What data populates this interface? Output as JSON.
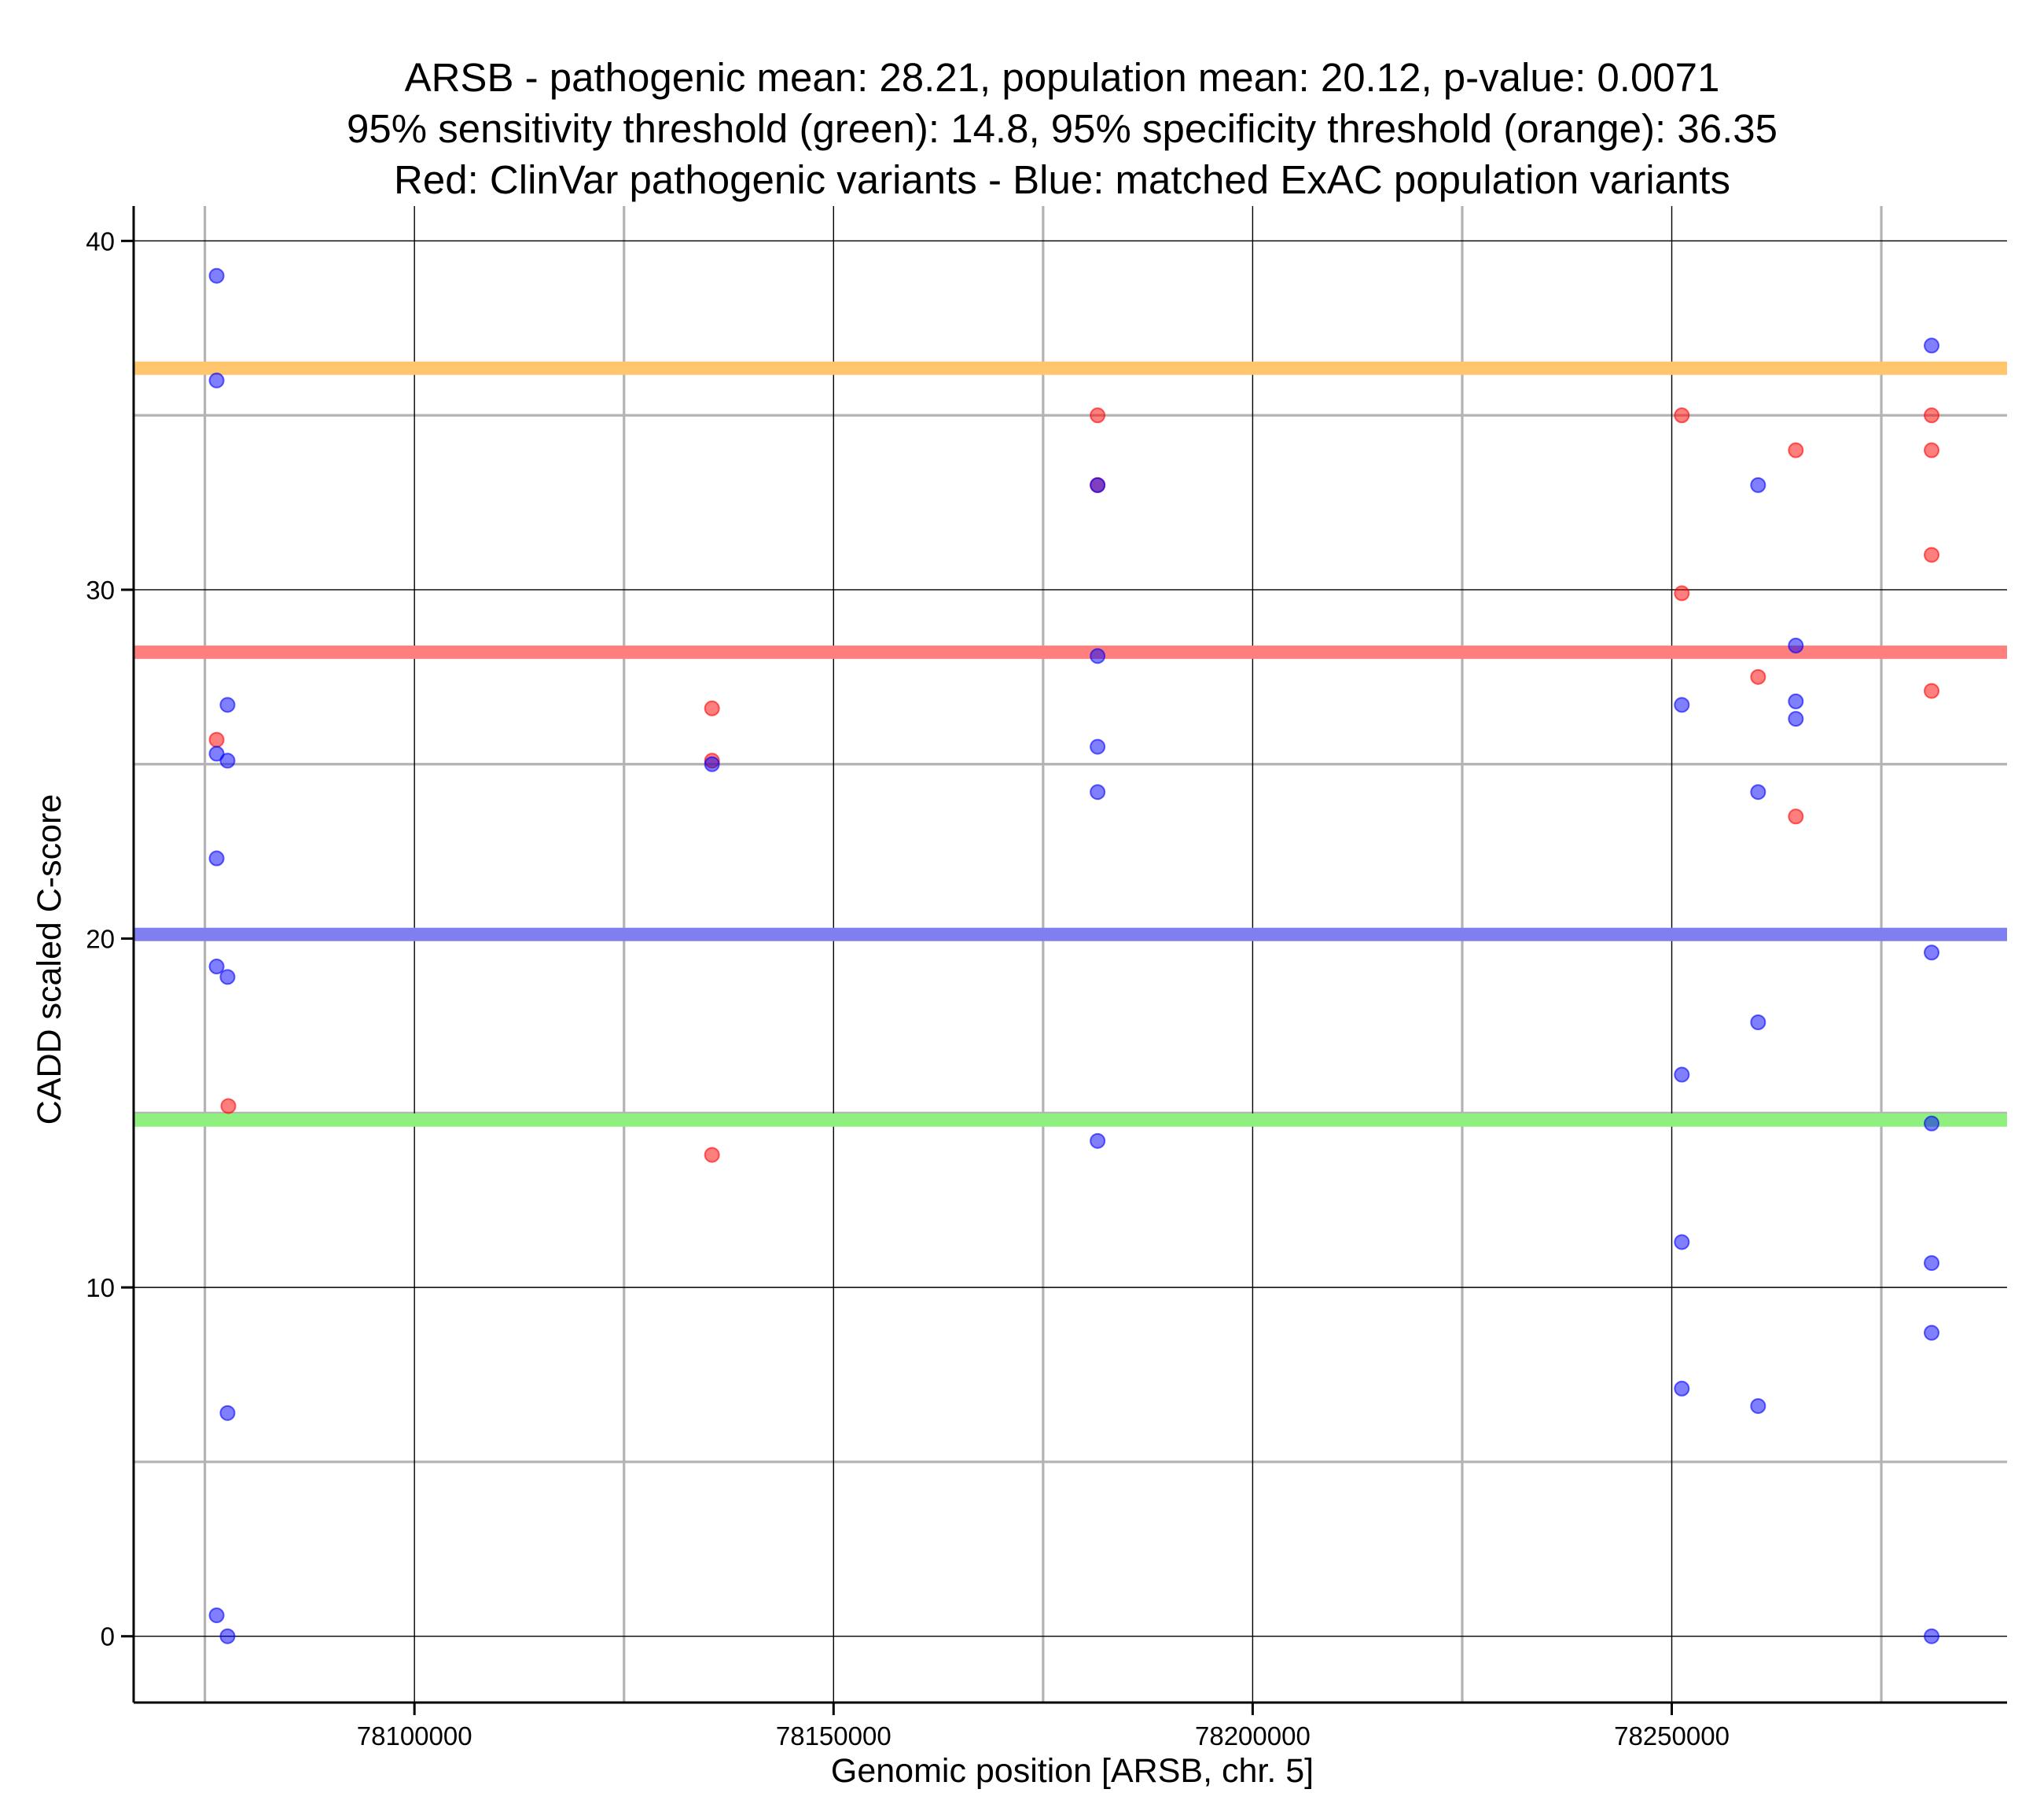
{
  "chart_data": {
    "type": "scatter",
    "title": [
      "ARSB - pathogenic mean: 28.21, population mean: 20.12, p-value: 0.0071",
      "95% sensitivity threshold (green): 14.8, 95% specificity threshold (orange): 36.35",
      "Red: ClinVar pathogenic variants - Blue: matched ExAC population variants"
    ],
    "xlabel": "Genomic position [ARSB, chr. 5]",
    "ylabel": "CADD scaled C-score",
    "xlim": [
      78066500,
      78290000
    ],
    "ylim": [
      -1.9,
      41.0
    ],
    "x_ticks": [
      78100000,
      78150000,
      78200000,
      78250000
    ],
    "x_tick_labels": [
      "78100000",
      "78150000",
      "78200000",
      "78250000"
    ],
    "x_minor_grid": [
      78075000,
      78125000,
      78175000,
      78225000,
      78275000
    ],
    "y_ticks": [
      0,
      10,
      20,
      30,
      40
    ],
    "y_tick_labels": [
      "0",
      "10",
      "20",
      "30",
      "40"
    ],
    "y_minor_grid": [
      5,
      15,
      25,
      35
    ],
    "grid": true,
    "reference_lines": [
      {
        "name": "95% specificity threshold",
        "value": 36.35,
        "color": "#FFC66E"
      },
      {
        "name": "pathogenic mean",
        "value": 28.21,
        "color": "#FF7F7F"
      },
      {
        "name": "population mean",
        "value": 20.12,
        "color": "#7F7FF2"
      },
      {
        "name": "95% sensitivity threshold",
        "value": 14.8,
        "color": "#8FF07F"
      }
    ],
    "series": [
      {
        "name": "ClinVar pathogenic variants",
        "color": "#FF0000",
        "points": [
          {
            "x": 78076400,
            "y": 25.7
          },
          {
            "x": 78077800,
            "y": 15.2
          },
          {
            "x": 78135500,
            "y": 26.6
          },
          {
            "x": 78135500,
            "y": 25.1
          },
          {
            "x": 78135500,
            "y": 13.8
          },
          {
            "x": 78181500,
            "y": 35.0
          },
          {
            "x": 78181500,
            "y": 33.0
          },
          {
            "x": 78251200,
            "y": 35.0
          },
          {
            "x": 78251200,
            "y": 29.9
          },
          {
            "x": 78260300,
            "y": 27.5
          },
          {
            "x": 78264800,
            "y": 34.0
          },
          {
            "x": 78264800,
            "y": 23.5
          },
          {
            "x": 78281000,
            "y": 35.0
          },
          {
            "x": 78281000,
            "y": 34.0
          },
          {
            "x": 78281000,
            "y": 31.0
          },
          {
            "x": 78281000,
            "y": 27.1
          }
        ]
      },
      {
        "name": "matched ExAC population variants",
        "color": "#0000FF",
        "points": [
          {
            "x": 78076400,
            "y": 39.0
          },
          {
            "x": 78076400,
            "y": 36.0
          },
          {
            "x": 78077700,
            "y": 26.7
          },
          {
            "x": 78076400,
            "y": 25.3
          },
          {
            "x": 78077700,
            "y": 25.1
          },
          {
            "x": 78076400,
            "y": 22.3
          },
          {
            "x": 78076400,
            "y": 19.2
          },
          {
            "x": 78077700,
            "y": 18.9
          },
          {
            "x": 78077700,
            "y": 6.4
          },
          {
            "x": 78076400,
            "y": 0.6
          },
          {
            "x": 78077700,
            "y": 0.0
          },
          {
            "x": 78135500,
            "y": 25.0
          },
          {
            "x": 78181500,
            "y": 33.0
          },
          {
            "x": 78181500,
            "y": 28.1
          },
          {
            "x": 78181500,
            "y": 25.5
          },
          {
            "x": 78181500,
            "y": 24.2
          },
          {
            "x": 78181500,
            "y": 14.2
          },
          {
            "x": 78251200,
            "y": 26.7
          },
          {
            "x": 78251200,
            "y": 16.1
          },
          {
            "x": 78251200,
            "y": 11.3
          },
          {
            "x": 78251200,
            "y": 7.1
          },
          {
            "x": 78260300,
            "y": 33.0
          },
          {
            "x": 78260300,
            "y": 24.2
          },
          {
            "x": 78260300,
            "y": 17.6
          },
          {
            "x": 78260300,
            "y": 6.6
          },
          {
            "x": 78264800,
            "y": 28.4
          },
          {
            "x": 78264800,
            "y": 26.8
          },
          {
            "x": 78264800,
            "y": 26.3
          },
          {
            "x": 78281000,
            "y": 37.0
          },
          {
            "x": 78281000,
            "y": 19.6
          },
          {
            "x": 78281000,
            "y": 14.7
          },
          {
            "x": 78281000,
            "y": 10.7
          },
          {
            "x": 78281000,
            "y": 8.7
          },
          {
            "x": 78281000,
            "y": 0.0
          }
        ]
      }
    ]
  }
}
